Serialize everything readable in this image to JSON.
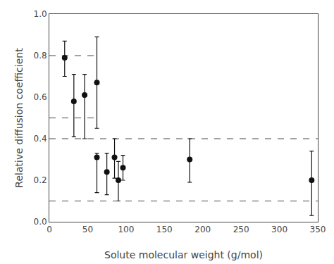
{
  "chart_data": {
    "type": "scatter",
    "x": [
      20,
      32,
      46,
      62,
      62,
      75,
      85,
      90,
      96,
      183,
      342
    ],
    "values": [
      0.79,
      0.58,
      0.61,
      0.67,
      0.31,
      0.24,
      0.31,
      0.2,
      0.26,
      0.3,
      0.2
    ],
    "yerr_up": [
      0.08,
      0.13,
      0.1,
      0.22,
      0.02,
      0.09,
      0.09,
      0.09,
      0.06,
      0.1,
      0.14
    ],
    "yerr_down": [
      0.09,
      0.17,
      0.21,
      0.22,
      0.17,
      0.11,
      0.1,
      0.1,
      0.06,
      0.11,
      0.17
    ],
    "color": "#111111",
    "marker": "circle",
    "reference_lines": [
      {
        "y": 0.8,
        "x": [
          0,
          65
        ],
        "color": "#444444",
        "line_style": "dashed"
      },
      {
        "y": 0.5,
        "x": [
          0,
          65
        ],
        "color": "#444444",
        "line_style": "dashed"
      },
      {
        "y": 0.4,
        "x": [
          0,
          350
        ],
        "color": "#444444",
        "line_style": "dashed"
      },
      {
        "y": 0.1,
        "x": [
          0,
          350
        ],
        "color": "#444444",
        "line_style": "dashed"
      }
    ],
    "xlabel": "Solute molecular weight (g/mol)",
    "ylabel": "Relative diffusion coefficient",
    "xlim": [
      0,
      350
    ],
    "ylim": [
      0,
      1.0
    ],
    "xticks": [
      0,
      50,
      100,
      150,
      200,
      250,
      300,
      350
    ],
    "yticks": [
      {
        "value": 0,
        "label": "0.0"
      },
      0.2,
      0.4,
      0.6,
      0.8,
      {
        "value": 1.0,
        "label": "1.0"
      }
    ],
    "grid": false
  }
}
